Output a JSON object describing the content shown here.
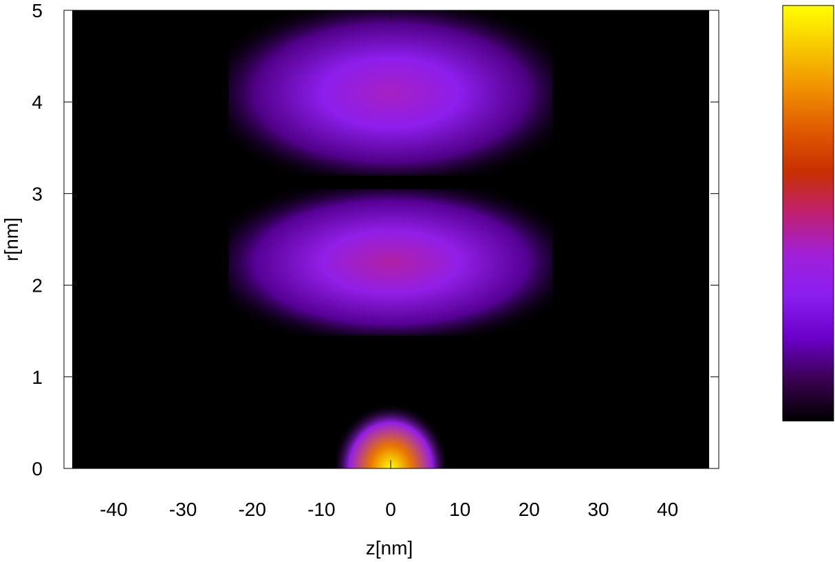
{
  "chart_data": {
    "type": "heatmap",
    "title": "",
    "xlabel": "z[nm]",
    "ylabel": "r[nm]",
    "xlim": [
      -46,
      46
    ],
    "ylim": [
      0,
      5
    ],
    "x_ticks": [
      -40,
      -30,
      -20,
      -10,
      0,
      10,
      20,
      30,
      40
    ],
    "y_ticks": [
      0,
      1,
      2,
      3,
      4,
      5
    ],
    "x_tick_labels": [
      "-40",
      "-30",
      "-20",
      "-10",
      "0",
      "10",
      "20",
      "30",
      "40"
    ],
    "y_tick_labels": [
      "0",
      "1",
      "2",
      "3",
      "4",
      "5"
    ],
    "colormap": [
      "#000000",
      "#3a0050",
      "#6a00c8",
      "#8a1ef0",
      "#a020d8",
      "#c02070",
      "#c83000",
      "#e05a00",
      "#f09000",
      "#f8c800",
      "#ffff00"
    ],
    "colorbar_labels": [],
    "features": [
      {
        "name": "lobe-r0",
        "z_center": 0,
        "r_center": 0.3,
        "peak_level": 1.0,
        "z_halfwidth": 6,
        "r_extent": [
          0,
          1.3
        ]
      },
      {
        "name": "lobe-r2",
        "z_center": 0,
        "r_center": 2.2,
        "peak_level": 0.45,
        "z_halfwidth": 18,
        "r_extent": [
          1.45,
          3.05
        ]
      },
      {
        "name": "lobe-r4",
        "z_center": 0,
        "r_center": 4.1,
        "peak_level": 0.42,
        "z_halfwidth": 18,
        "r_extent": [
          3.2,
          5.0
        ]
      }
    ]
  }
}
